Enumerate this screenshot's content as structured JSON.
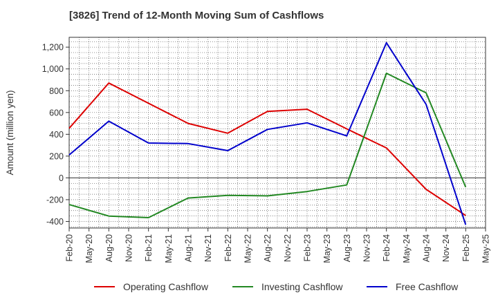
{
  "chart_data": {
    "type": "line",
    "title": "[3826]  Trend of 12-Month Moving Sum of Cashflows",
    "xlabel": "",
    "ylabel": "Amount (million yen)",
    "ylim": [
      -460,
      1290
    ],
    "yticks": [
      -400,
      -200,
      0,
      200,
      400,
      600,
      800,
      1000,
      1200
    ],
    "ytick_labels": [
      "-400",
      "-200",
      "0",
      "200",
      "400",
      "600",
      "800",
      "1,000",
      "1,200"
    ],
    "categories": [
      "Feb-20",
      "May-20",
      "Aug-20",
      "Nov-20",
      "Feb-21",
      "May-21",
      "Aug-21",
      "Nov-21",
      "Feb-22",
      "May-22",
      "Aug-22",
      "Nov-22",
      "Feb-23",
      "May-23",
      "Aug-23",
      "Nov-23",
      "Feb-24",
      "May-24",
      "Aug-24",
      "Nov-24",
      "Feb-25",
      "May-25"
    ],
    "grid": true,
    "legend_position": "bottom",
    "series": [
      {
        "name": "Operating Cashflow",
        "color": "#dd0000",
        "values": [
          455,
          null,
          870,
          null,
          null,
          null,
          500,
          null,
          410,
          null,
          610,
          null,
          630,
          null,
          450,
          null,
          275,
          null,
          -105,
          null,
          -345,
          null
        ]
      },
      {
        "name": "Investing Cashflow",
        "color": "#228822",
        "values": [
          -245,
          null,
          -350,
          null,
          -365,
          null,
          -185,
          null,
          -160,
          null,
          -165,
          null,
          -125,
          null,
          -65,
          null,
          960,
          null,
          780,
          null,
          -85,
          null
        ]
      },
      {
        "name": "Free Cashflow",
        "color": "#0000cc",
        "values": [
          210,
          null,
          520,
          null,
          320,
          null,
          315,
          null,
          250,
          null,
          445,
          null,
          505,
          null,
          385,
          null,
          1240,
          null,
          675,
          null,
          -430,
          null
        ]
      }
    ]
  }
}
